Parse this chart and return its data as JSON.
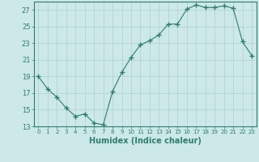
{
  "x": [
    0,
    1,
    2,
    3,
    4,
    5,
    6,
    7,
    8,
    9,
    10,
    11,
    12,
    13,
    14,
    15,
    16,
    17,
    18,
    19,
    20,
    21,
    22,
    23
  ],
  "y": [
    19,
    17.5,
    16.5,
    15.2,
    14.2,
    14.5,
    13.4,
    13.2,
    17.2,
    19.5,
    21.3,
    22.8,
    23.3,
    24.0,
    25.3,
    25.3,
    27.1,
    27.6,
    27.3,
    27.3,
    27.5,
    27.2,
    23.2,
    21.5
  ],
  "line_color": "#2e7d6e",
  "marker": "+",
  "marker_size": 4,
  "bg_color": "#cce8e8",
  "grid_color": "#b0d0d0",
  "xlabel": "Humidex (Indice chaleur)",
  "ylim": [
    13,
    28
  ],
  "xlim": [
    -0.5,
    23.5
  ],
  "yticks": [
    13,
    15,
    17,
    19,
    21,
    23,
    25,
    27
  ],
  "xtick_labels": [
    "0",
    "1",
    "2",
    "3",
    "4",
    "5",
    "6",
    "7",
    "8",
    "9",
    "10",
    "11",
    "12",
    "13",
    "14",
    "15",
    "16",
    "17",
    "18",
    "19",
    "20",
    "21",
    "22",
    "23"
  ],
  "tick_color": "#2e7d6e",
  "axis_color": "#2e7d6e",
  "xlabel_fontsize": 7,
  "ytick_fontsize": 6,
  "xtick_fontsize": 5
}
